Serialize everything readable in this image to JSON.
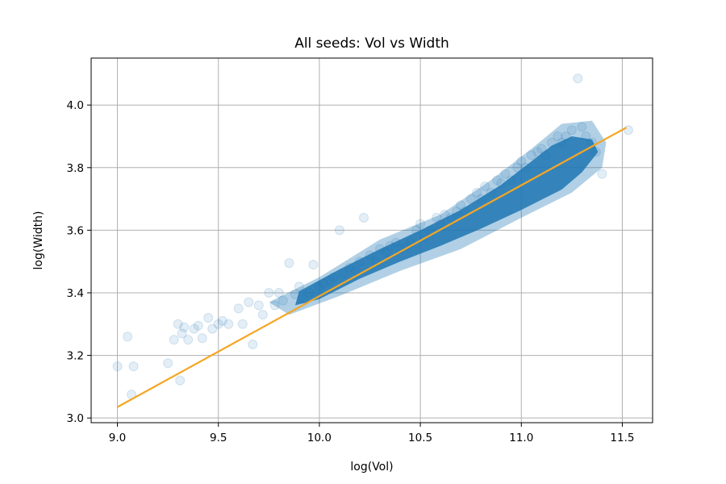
{
  "chart_data": {
    "type": "scatter",
    "title": "All seeds: Vol vs Width",
    "xlabel": "log(Vol)",
    "ylabel": "log(Width)",
    "xlim": [
      8.87,
      11.65
    ],
    "ylim": [
      2.985,
      4.15
    ],
    "x_ticks": [
      9.0,
      9.5,
      10.0,
      10.5,
      11.0,
      11.5
    ],
    "x_tick_labels": [
      "9.0",
      "9.5",
      "10.0",
      "10.5",
      "11.0",
      "11.5"
    ],
    "y_ticks": [
      3.0,
      3.2,
      3.4,
      3.6,
      3.8,
      4.0
    ],
    "y_tick_labels": [
      "3.0",
      "3.2",
      "3.4",
      "3.6",
      "3.8",
      "4.0"
    ],
    "grid": true,
    "marker_color": "#1f77b4",
    "marker_alpha": 0.12,
    "line_color": "#f5a623",
    "series": [
      {
        "kind": "points",
        "x": [
          9.0,
          9.05,
          9.07,
          9.08,
          9.25,
          9.28,
          9.3,
          9.31,
          9.32,
          9.33,
          9.35,
          9.38,
          9.4,
          9.42,
          9.45,
          9.47,
          9.5,
          9.52,
          9.55,
          9.6,
          9.62,
          9.65,
          9.67,
          9.7,
          9.72,
          9.75,
          9.78,
          9.8,
          9.82,
          9.85,
          9.88,
          9.9,
          9.92,
          9.95,
          9.97,
          10.0,
          10.02,
          10.05,
          10.07,
          10.1,
          10.12,
          10.15,
          10.18,
          10.2,
          10.22,
          10.25,
          10.28,
          10.3,
          10.33,
          10.35,
          10.38,
          10.4,
          10.43,
          10.45,
          10.48,
          10.5,
          10.52,
          10.55,
          10.58,
          10.6,
          10.62,
          10.65,
          10.68,
          10.7,
          10.72,
          10.75,
          10.78,
          10.8,
          10.82,
          10.85,
          10.88,
          10.9,
          10.92,
          10.95,
          10.98,
          11.0,
          11.02,
          11.05,
          11.08,
          11.1,
          11.12,
          11.15,
          11.18,
          11.2,
          11.22,
          11.25,
          11.28,
          11.3,
          11.32,
          11.35,
          11.37,
          11.4,
          11.53
        ],
        "y": [
          3.165,
          3.26,
          3.075,
          3.165,
          3.175,
          3.25,
          3.3,
          3.12,
          3.27,
          3.29,
          3.25,
          3.285,
          3.295,
          3.255,
          3.32,
          3.285,
          3.3,
          3.31,
          3.3,
          3.35,
          3.3,
          3.37,
          3.235,
          3.36,
          3.33,
          3.4,
          3.36,
          3.4,
          3.375,
          3.495,
          3.395,
          3.42,
          3.38,
          3.4,
          3.49,
          3.42,
          3.43,
          3.44,
          3.45,
          3.6,
          3.46,
          3.48,
          3.47,
          3.5,
          3.64,
          3.52,
          3.5,
          3.54,
          3.53,
          3.55,
          3.56,
          3.54,
          3.55,
          3.56,
          3.6,
          3.62,
          3.58,
          3.6,
          3.64,
          3.62,
          3.65,
          3.64,
          3.66,
          3.68,
          3.66,
          3.7,
          3.72,
          3.7,
          3.74,
          3.72,
          3.76,
          3.75,
          3.78,
          3.76,
          3.8,
          3.82,
          3.8,
          3.84,
          3.85,
          3.86,
          3.84,
          3.88,
          3.9,
          3.88,
          3.9,
          3.92,
          4.085,
          3.93,
          3.9,
          3.88,
          3.85,
          3.78,
          3.92
        ]
      },
      {
        "kind": "fit_line",
        "x": [
          9.0,
          11.52
        ],
        "y": [
          3.035,
          3.928
        ]
      }
    ]
  }
}
